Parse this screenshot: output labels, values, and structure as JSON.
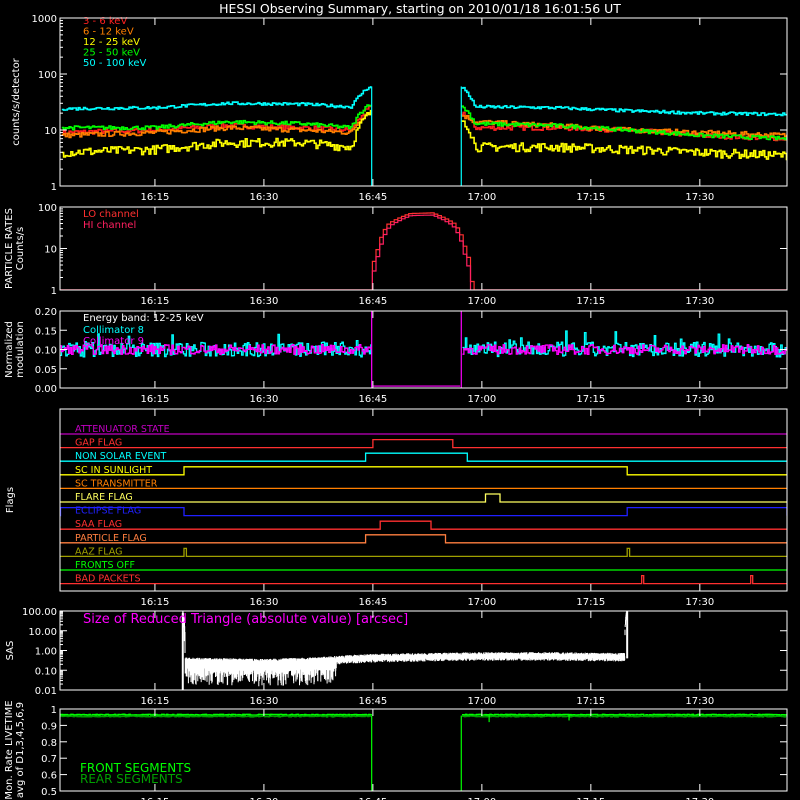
{
  "title": "HESSI Observing Summary, starting on 2010/01/18 16:01:56 UT",
  "time_axis": {
    "start": "16:01:56",
    "end": "17:42:00",
    "ticks": [
      "16:15",
      "16:30",
      "16:45",
      "17:00",
      "17:15",
      "17:30"
    ]
  },
  "colors": {
    "background": "#000000",
    "axes": "#ffffff",
    "band_3_6": "#ff2020",
    "band_6_12": "#ff7f00",
    "band_12_25": "#ffff00",
    "band_25_50": "#00ff00",
    "band_50_100": "#00ffff",
    "lo_channel": "#ff3030",
    "hi_channel": "#ff2060",
    "magenta": "#ff00ff",
    "cyan": "#00ffff",
    "green": "#00ff00",
    "dark_green": "#00c000"
  },
  "chart_data": [
    {
      "id": "count-rates",
      "type": "line",
      "ylabel": "counts/s/detector",
      "yscale": "log",
      "ylim": [
        1,
        1000
      ],
      "yticks": [
        "1",
        "10",
        "100",
        "1000"
      ],
      "gaps": [
        [
          "16:44:50",
          "16:57:10"
        ]
      ],
      "spikes": [
        "16:44:50",
        "16:57:10"
      ],
      "series": [
        {
          "name": "3 - 6  keV",
          "color": "#ff2020",
          "noise": 0.1,
          "points": [
            [
              "16:02",
              9
            ],
            [
              "16:15",
              10
            ],
            [
              "16:25",
              12
            ],
            [
              "16:35",
              11
            ],
            [
              "16:42",
              10
            ],
            [
              "16:44:30",
              25
            ],
            [
              "16:57:30",
              20
            ],
            [
              "16:59",
              11
            ],
            [
              "17:10",
              11
            ],
            [
              "17:20",
              10
            ],
            [
              "17:30",
              8
            ],
            [
              "17:42",
              7
            ]
          ]
        },
        {
          "name": "6 - 12  keV",
          "color": "#ff7f00",
          "noise": 0.1,
          "points": [
            [
              "16:02",
              8
            ],
            [
              "16:15",
              9
            ],
            [
              "16:25",
              11
            ],
            [
              "16:35",
              10
            ],
            [
              "16:42",
              9
            ],
            [
              "16:44:30",
              22
            ],
            [
              "16:57:30",
              18
            ],
            [
              "16:59",
              14
            ],
            [
              "17:10",
              12
            ],
            [
              "17:20",
              10
            ],
            [
              "17:30",
              9
            ],
            [
              "17:42",
              8
            ]
          ]
        },
        {
          "name": "12 - 25  keV",
          "color": "#ffff00",
          "noise": 0.18,
          "points": [
            [
              "16:02",
              4
            ],
            [
              "16:15",
              4.5
            ],
            [
              "16:25",
              6
            ],
            [
              "16:35",
              6
            ],
            [
              "16:42",
              5
            ],
            [
              "16:44:30",
              20
            ],
            [
              "16:57:30",
              15
            ],
            [
              "16:59",
              5
            ],
            [
              "17:10",
              5
            ],
            [
              "17:20",
              4.5
            ],
            [
              "17:30",
              4
            ],
            [
              "17:42",
              3.5
            ]
          ]
        },
        {
          "name": "25 - 50  keV",
          "color": "#00ff00",
          "noise": 0.08,
          "points": [
            [
              "16:02",
              11
            ],
            [
              "16:15",
              11
            ],
            [
              "16:25",
              14
            ],
            [
              "16:35",
              13
            ],
            [
              "16:42",
              11
            ],
            [
              "16:44:30",
              30
            ],
            [
              "16:57:30",
              25
            ],
            [
              "16:59",
              13
            ],
            [
              "17:10",
              12
            ],
            [
              "17:20",
              10
            ],
            [
              "17:30",
              8
            ],
            [
              "17:42",
              7
            ]
          ]
        },
        {
          "name": "50 - 100  keV",
          "color": "#00ffff",
          "noise": 0.06,
          "points": [
            [
              "16:02",
              24
            ],
            [
              "16:15",
              25
            ],
            [
              "16:25",
              30
            ],
            [
              "16:35",
              29
            ],
            [
              "16:42",
              26
            ],
            [
              "16:44:30",
              60
            ],
            [
              "16:57:30",
              55
            ],
            [
              "16:59",
              26
            ],
            [
              "17:10",
              25
            ],
            [
              "17:20",
              22
            ],
            [
              "17:30",
              20
            ],
            [
              "17:42",
              19
            ]
          ]
        }
      ]
    },
    {
      "id": "particle-rates",
      "type": "line",
      "ylabel_lines": [
        "PARTICLE RATES",
        "Counts/s"
      ],
      "yscale": "log",
      "ylim": [
        1,
        100
      ],
      "yticks": [
        "1",
        "10",
        "100"
      ],
      "series": [
        {
          "name": "LO channel",
          "color": "#ff3030",
          "points": [
            [
              "16:02",
              1
            ],
            [
              "16:44:30",
              1
            ],
            [
              "16:45:30",
              10
            ],
            [
              "16:47",
              40
            ],
            [
              "16:50",
              70
            ],
            [
              "16:53",
              72
            ],
            [
              "16:56",
              40
            ],
            [
              "16:57:30",
              10
            ],
            [
              "16:58:30",
              1
            ],
            [
              "17:42",
              1
            ]
          ]
        },
        {
          "name": "HI channel",
          "color": "#ff2060",
          "points": [
            [
              "16:02",
              1
            ],
            [
              "16:44:40",
              1
            ],
            [
              "16:45:40",
              8
            ],
            [
              "16:47:10",
              35
            ],
            [
              "16:50",
              62
            ],
            [
              "16:53",
              64
            ],
            [
              "16:55:50",
              35
            ],
            [
              "16:57:20",
              8
            ],
            [
              "16:58:20",
              1
            ],
            [
              "17:42",
              1
            ]
          ]
        }
      ]
    },
    {
      "id": "modulation",
      "type": "line",
      "ylabel_lines": [
        "Normalized",
        "modulation"
      ],
      "yscale": "linear",
      "ylim": [
        0,
        0.2
      ],
      "yticks": [
        "0.00",
        "0.05",
        "0.10",
        "0.15",
        "0.20"
      ],
      "annotation": "Energy band: 12-25 keV",
      "gaps": [
        [
          "16:44:50",
          "16:57:10"
        ]
      ],
      "spikes": [
        "16:44:50",
        "16:57:10"
      ],
      "series": [
        {
          "name": "Collimator 8",
          "color": "#00ffff",
          "mean": 0.1,
          "noise": 0.012
        },
        {
          "name": "Collimator 9",
          "color": "#ff00ff",
          "mean": 0.1,
          "noise": 0.008
        }
      ]
    },
    {
      "id": "flags",
      "type": "step",
      "ylabel": "Flags",
      "flags": [
        {
          "name": "ATTENUATOR STATE",
          "color": "#c000c0",
          "on": []
        },
        {
          "name": "GAP FLAG",
          "color": "#ff3030",
          "on": [
            [
              "16:45",
              "16:56"
            ]
          ]
        },
        {
          "name": "NON SOLAR EVENT",
          "color": "#00ffff",
          "on": [
            [
              "16:44",
              "16:58"
            ]
          ]
        },
        {
          "name": "SC IN SUNLIGHT",
          "color": "#ffff00",
          "on": [
            [
              "16:19",
              "17:20"
            ]
          ]
        },
        {
          "name": "SC TRANSMITTER",
          "color": "#ff7f00",
          "on": []
        },
        {
          "name": "FLARE FLAG",
          "color": "#ffff60",
          "on": [
            [
              "17:00:30",
              "17:02:30"
            ]
          ]
        },
        {
          "name": "ECLIPSE FLAG",
          "color": "#2020ff",
          "on": [
            [
              "16:02",
              "16:19"
            ],
            [
              "17:20",
              "17:42"
            ]
          ]
        },
        {
          "name": "SAA FLAG",
          "color": "#ff3030",
          "on": [
            [
              "16:46",
              "16:53"
            ]
          ]
        },
        {
          "name": "PARTICLE FLAG",
          "color": "#ff7f40",
          "on": [
            [
              "16:44",
              "16:55"
            ]
          ]
        },
        {
          "name": "AAZ FLAG",
          "color": "#a0a000",
          "on": [
            [
              "16:19",
              "16:19:20"
            ],
            [
              "17:20",
              "17:20:20"
            ]
          ]
        },
        {
          "name": "FRONTS OFF",
          "color": "#00ff00",
          "on": []
        },
        {
          "name": "BAD PACKETS",
          "color": "#ff3030",
          "on": [
            [
              "17:22",
              "17:22:10"
            ],
            [
              "17:37",
              "17:37:10"
            ]
          ]
        }
      ]
    },
    {
      "id": "sas",
      "type": "line",
      "ylabel": "SAS",
      "yscale": "log",
      "ylim": [
        0.01,
        100
      ],
      "yticks": [
        "0.01",
        "0.10",
        "1.00",
        "10.00",
        "100.00"
      ],
      "annotation": "Size of Reduced Triangle (absolute value) [arcsec]",
      "series": [
        {
          "name": "triangle size",
          "color": "#ffffff",
          "points": [
            [
              "16:18:50",
              80
            ],
            [
              "16:19:10",
              0.3
            ],
            [
              "16:22",
              0.28
            ],
            [
              "16:30",
              0.25
            ],
            [
              "16:37",
              0.3
            ],
            [
              "16:45",
              0.45
            ],
            [
              "17:00",
              0.55
            ],
            [
              "17:10",
              0.55
            ],
            [
              "17:19:40",
              0.5
            ],
            [
              "17:20",
              100
            ]
          ]
        }
      ]
    },
    {
      "id": "livetime",
      "type": "line",
      "ylabel_lines": [
        "Mon. Rate LIVETIME",
        "avg of D1,3,4,5,6,9"
      ],
      "yscale": "linear",
      "ylim": [
        0.5,
        1.0
      ],
      "yticks": [
        "0.5",
        "0.6",
        "0.7",
        "0.8",
        "0.9",
        "1"
      ],
      "gaps": [
        [
          "16:44:50",
          "16:57:10"
        ]
      ],
      "series": [
        {
          "name": "FRONT SEGMENTS",
          "color": "#00ff00",
          "mean": 0.965
        },
        {
          "name": "REAR SEGMENTS",
          "color": "#00a000",
          "mean": 0.955
        }
      ]
    }
  ]
}
